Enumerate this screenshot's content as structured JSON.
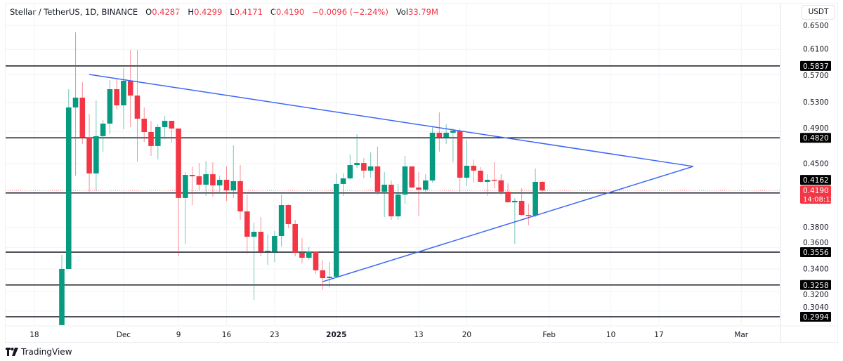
{
  "header": {
    "symbol": "Stellar / TetherUS, 1D, BINANCE",
    "o_label": "O",
    "o": "0.4287",
    "h_label": "H",
    "h": "0.4299",
    "l_label": "L",
    "l": "0.4171",
    "c_label": "C",
    "c": "0.4190",
    "change": "−0.0096 (−2.24%)",
    "vol_label": "Vol",
    "vol": "33.79M"
  },
  "currency": "USDT",
  "brand": "TradingView",
  "colors": {
    "up": "#089981",
    "down": "#f23645",
    "trend": "#3d67f5",
    "level": "#131722"
  },
  "chart_data": {
    "type": "candlestick",
    "scale": "log",
    "start_date": "Nov 22",
    "y_ticks": [
      "0.6500",
      "0.6100",
      "0.5700",
      "0.5300",
      "0.4900",
      "0.4500",
      "0.3800",
      "0.3600",
      "0.3400",
      "0.3200",
      "0.3040"
    ],
    "x_ticks": [
      {
        "label": "18",
        "day": -4
      },
      {
        "label": "Dec",
        "day": 9
      },
      {
        "label": "9",
        "day": 17
      },
      {
        "label": "16",
        "day": 24
      },
      {
        "label": "23",
        "day": 31
      },
      {
        "label": "2025",
        "day": 40,
        "bold": true
      },
      {
        "label": "13",
        "day": 52
      },
      {
        "label": "20",
        "day": 59
      },
      {
        "label": "Feb",
        "day": 71
      },
      {
        "label": "10",
        "day": 80
      },
      {
        "label": "17",
        "day": 87
      },
      {
        "label": "Mar",
        "day": 99
      }
    ],
    "levels": [
      "0.5837",
      "0.4820",
      "0.4162",
      "0.3556",
      "0.3258",
      "0.2994"
    ],
    "last_price": {
      "value": "0.4190",
      "countdown": "14:08:12"
    },
    "trendlines": [
      {
        "name": "upper",
        "from": {
          "day": 4,
          "price": 0.5706
        },
        "to": {
          "day": 92,
          "price": 0.4467
        }
      },
      {
        "name": "lower",
        "from": {
          "day": 38,
          "price": 0.3287
        },
        "to": {
          "day": 92,
          "price": 0.4467
        }
      }
    ],
    "candles_ohlc": [
      [
        0.2928,
        0.3529,
        0.285,
        0.34
      ],
      [
        0.34,
        0.5486,
        0.34,
        0.5226
      ],
      [
        0.5226,
        0.6384,
        0.4359,
        0.5364
      ],
      [
        0.5364,
        0.559,
        0.4742,
        0.4822
      ],
      [
        0.4822,
        0.5139,
        0.4176,
        0.4384
      ],
      [
        0.4384,
        0.5324,
        0.4184,
        0.4841
      ],
      [
        0.4841,
        0.5053,
        0.4646,
        0.5006
      ],
      [
        0.5006,
        0.5621,
        0.4868,
        0.5486
      ],
      [
        0.5486,
        0.5642,
        0.5197,
        0.5255
      ],
      [
        0.5255,
        0.5803,
        0.4932,
        0.5611
      ],
      [
        0.5611,
        0.6092,
        0.496,
        0.5394
      ],
      [
        0.5394,
        0.6092,
        0.4525,
        0.5072
      ],
      [
        0.5072,
        0.5226,
        0.4768,
        0.4895
      ],
      [
        0.4895,
        0.5043,
        0.4594,
        0.4716
      ],
      [
        0.4716,
        0.4997,
        0.455,
        0.496
      ],
      [
        0.496,
        0.511,
        0.4804,
        0.5043
      ],
      [
        0.5043,
        0.5043,
        0.476,
        0.4941
      ],
      [
        0.4941,
        0.4941,
        0.3516,
        0.4107
      ],
      [
        0.4107,
        0.4401,
        0.3636,
        0.4367
      ],
      [
        0.4367,
        0.4467,
        0.403,
        0.4351
      ],
      [
        0.4351,
        0.4508,
        0.4191,
        0.4255
      ],
      [
        0.4255,
        0.4533,
        0.413,
        0.4375
      ],
      [
        0.4375,
        0.4516,
        0.4122,
        0.4247
      ],
      [
        0.4247,
        0.4359,
        0.4176,
        0.4311
      ],
      [
        0.4311,
        0.4467,
        0.4076,
        0.4191
      ],
      [
        0.4191,
        0.4724,
        0.4107,
        0.4295
      ],
      [
        0.4295,
        0.4483,
        0.3875,
        0.3963
      ],
      [
        0.3963,
        0.4145,
        0.3542,
        0.3705
      ],
      [
        0.3705,
        0.3847,
        0.3131,
        0.3754
      ],
      [
        0.3754,
        0.3904,
        0.3516,
        0.3562
      ],
      [
        0.3562,
        0.3726,
        0.3438,
        0.3569
      ],
      [
        0.3562,
        0.3761,
        0.3464,
        0.3712
      ],
      [
        0.3712,
        0.4145,
        0.3609,
        0.403
      ],
      [
        0.403,
        0.4038,
        0.379,
        0.3832
      ],
      [
        0.3832,
        0.3875,
        0.3516,
        0.3549
      ],
      [
        0.3549,
        0.3691,
        0.3451,
        0.3503
      ],
      [
        0.3503,
        0.3603,
        0.3483,
        0.3562
      ],
      [
        0.3562,
        0.3562,
        0.3356,
        0.3388
      ],
      [
        0.3388,
        0.3483,
        0.3214,
        0.3318
      ],
      [
        0.3318,
        0.3464,
        0.3238,
        0.3331
      ],
      [
        0.3331,
        0.4384,
        0.3325,
        0.4263
      ],
      [
        0.4263,
        0.4384,
        0.413,
        0.4327
      ],
      [
        0.4327,
        0.4611,
        0.4311,
        0.4483
      ],
      [
        0.4483,
        0.4868,
        0.445,
        0.4508
      ],
      [
        0.4508,
        0.4568,
        0.4327,
        0.4417
      ],
      [
        0.4417,
        0.4637,
        0.4335,
        0.4467
      ],
      [
        0.4467,
        0.4707,
        0.4145,
        0.4176
      ],
      [
        0.4176,
        0.4401,
        0.3904,
        0.4255
      ],
      [
        0.4255,
        0.4303,
        0.3875,
        0.3911
      ],
      [
        0.3911,
        0.4263,
        0.3875,
        0.4145
      ],
      [
        0.4145,
        0.4594,
        0.4045,
        0.4467
      ],
      [
        0.4467,
        0.4467,
        0.4215,
        0.4223
      ],
      [
        0.4223,
        0.4401,
        0.3918,
        0.4199
      ],
      [
        0.4199,
        0.4375,
        0.4161,
        0.4303
      ],
      [
        0.4303,
        0.496,
        0.4279,
        0.4886
      ],
      [
        0.4886,
        0.5158,
        0.4646,
        0.4822
      ],
      [
        0.4822,
        0.4997,
        0.4742,
        0.4886
      ],
      [
        0.4886,
        0.4941,
        0.4516,
        0.4913
      ],
      [
        0.4913,
        0.4941,
        0.4176,
        0.4335
      ],
      [
        0.4335,
        0.4795,
        0.4239,
        0.4475
      ],
      [
        0.4475,
        0.455,
        0.4279,
        0.4417
      ],
      [
        0.4417,
        0.4458,
        0.4279,
        0.4287
      ],
      [
        0.4287,
        0.4375,
        0.413,
        0.4311
      ],
      [
        0.4311,
        0.4517,
        0.4215,
        0.4305
      ],
      [
        0.4305,
        0.4375,
        0.4138,
        0.4176
      ],
      [
        0.4176,
        0.4271,
        0.406,
        0.406
      ],
      [
        0.406,
        0.4107,
        0.3636,
        0.4076
      ],
      [
        0.4076,
        0.4215,
        0.3918,
        0.3926
      ],
      [
        0.3926,
        0.4045,
        0.3818,
        0.392
      ],
      [
        0.392,
        0.4442,
        0.3904,
        0.4287
      ],
      [
        0.4287,
        0.4299,
        0.4171,
        0.419
      ]
    ]
  }
}
